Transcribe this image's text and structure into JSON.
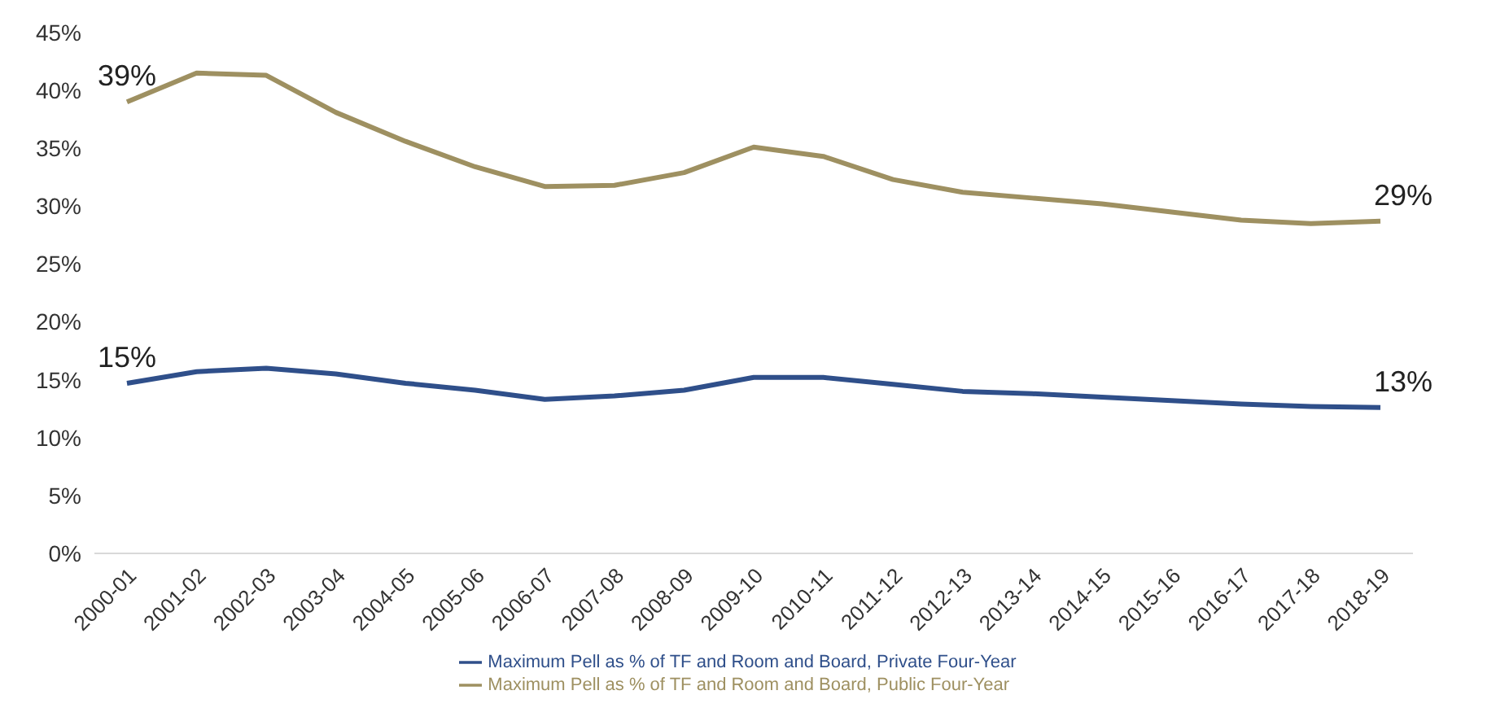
{
  "chart_data": {
    "type": "line",
    "categories": [
      "2000-01",
      "2001-02",
      "2002-03",
      "2003-04",
      "2004-05",
      "2005-06",
      "2006-07",
      "2007-08",
      "2008-09",
      "2009-10",
      "2010-11",
      "2011-12",
      "2012-13",
      "2013-14",
      "2014-15",
      "2015-16",
      "2016-17",
      "2017-18",
      "2018-19"
    ],
    "series": [
      {
        "name": "Maximum Pell as % of TF and Room and Board, Private Four-Year",
        "color": "#2f4f8a",
        "values": [
          14.7,
          15.7,
          16.0,
          15.5,
          14.7,
          14.1,
          13.3,
          13.6,
          14.1,
          15.2,
          15.2,
          14.6,
          14.0,
          13.8,
          13.5,
          13.2,
          12.9,
          12.7,
          12.6
        ],
        "value_labels": [
          "15%",
          null,
          null,
          null,
          null,
          null,
          null,
          null,
          null,
          null,
          null,
          null,
          null,
          null,
          null,
          null,
          null,
          null,
          "13%"
        ]
      },
      {
        "name": "Maximum Pell as % of TF and Room and Board, Public Four-Year",
        "color": "#9e9061",
        "values": [
          39.0,
          41.5,
          41.3,
          38.1,
          35.6,
          33.4,
          31.7,
          31.8,
          32.9,
          35.1,
          34.3,
          32.3,
          31.2,
          30.7,
          30.2,
          29.5,
          28.8,
          28.5,
          28.7
        ],
        "value_labels": [
          "39%",
          null,
          null,
          null,
          null,
          null,
          null,
          null,
          null,
          null,
          null,
          null,
          null,
          null,
          null,
          null,
          null,
          null,
          "29%"
        ]
      }
    ],
    "ylim": [
      0,
      45
    ],
    "yticks": [
      {
        "value": 0,
        "label": "0%"
      },
      {
        "value": 5,
        "label": "5%"
      },
      {
        "value": 10,
        "label": "10%"
      },
      {
        "value": 15,
        "label": "15%"
      },
      {
        "value": 20,
        "label": "20%"
      },
      {
        "value": 25,
        "label": "25%"
      },
      {
        "value": 30,
        "label": "30%"
      },
      {
        "value": 35,
        "label": "35%"
      },
      {
        "value": 40,
        "label": "40%"
      },
      {
        "value": 45,
        "label": "45%"
      }
    ],
    "grid": false,
    "legend": "bottom",
    "marker": "none",
    "line_style": "solid"
  }
}
